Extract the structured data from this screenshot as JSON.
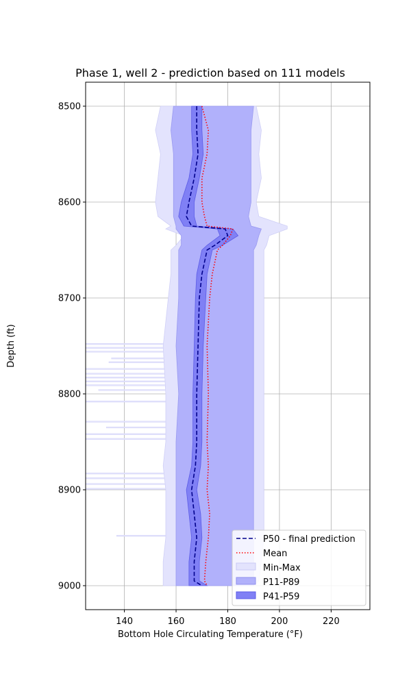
{
  "chart_data": {
    "type": "area",
    "title": "Phase 1, well 2 - prediction based on 111 models",
    "xlabel": "Bottom Hole Circulating Temperature (°F)",
    "ylabel": "Depth (ft)",
    "xlim": [
      125,
      235
    ],
    "ylim": [
      9025,
      8475
    ],
    "y_inverted": true,
    "grid": true,
    "legend_position": "lower right",
    "xticks": [
      140,
      160,
      180,
      200,
      220
    ],
    "xtick_labels": [
      "140",
      "160",
      "180",
      "200",
      "220"
    ],
    "yticks": [
      8500,
      8600,
      8700,
      8800,
      8900,
      9000
    ],
    "ytick_labels": [
      "8500",
      "8600",
      "8700",
      "8800",
      "8900",
      "9000"
    ],
    "colors": {
      "p50": "#00008b",
      "mean": "#ff0000",
      "minmax": "#e3e3fd",
      "p11_p89": "#b1b1fb",
      "p41_p59": "#8080f5"
    },
    "depth": [
      8500,
      8525,
      8550,
      8575,
      8600,
      8615,
      8625,
      8628,
      8635,
      8645,
      8650,
      8675,
      8700,
      8750,
      8800,
      8850,
      8875,
      8900,
      8925,
      8950,
      8975,
      8995,
      9000
    ],
    "series": [
      {
        "name": "P50 - final prediction",
        "key": "p50",
        "style": "dashed",
        "values": [
          168,
          168,
          168.5,
          167,
          165,
          164,
          166,
          179,
          180,
          175,
          172,
          170,
          169,
          168.5,
          168,
          168,
          167.5,
          166,
          167,
          168,
          167,
          167,
          170
        ]
      },
      {
        "name": "Mean",
        "key": "mean",
        "style": "dotted",
        "values": [
          170,
          172.5,
          172,
          170,
          170,
          171,
          172,
          182,
          181,
          178,
          176,
          174,
          173,
          172,
          172.5,
          172,
          172.5,
          172,
          173,
          172.5,
          171.5,
          171,
          172
        ]
      }
    ],
    "bands": [
      {
        "name": "Min-Max",
        "key": "minmax",
        "lower": [
          154,
          152,
          154,
          153,
          152,
          153,
          158,
          156,
          163,
          160,
          158,
          158,
          157,
          155,
          156,
          156,
          155,
          156,
          156,
          156,
          155,
          155,
          155
        ],
        "upper": [
          191,
          193,
          192,
          193,
          191,
          192,
          203,
          203,
          196,
          195,
          194,
          194,
          194,
          194,
          194,
          194,
          194,
          194,
          194,
          194,
          193,
          192,
          190
        ]
      },
      {
        "name": "P11-P89",
        "key": "p11_p89",
        "lower": [
          159,
          158,
          159,
          159,
          159,
          159,
          160,
          160,
          162,
          162,
          161,
          161,
          161,
          160,
          161,
          160,
          160,
          160,
          160,
          160,
          160,
          160,
          160
        ],
        "upper": [
          190,
          189,
          189,
          189,
          189,
          188,
          189,
          193,
          192,
          191,
          190,
          190,
          190,
          190,
          190,
          190,
          190,
          190,
          190,
          190,
          190,
          190,
          190
        ]
      },
      {
        "name": "P41-P59",
        "key": "p41_p59",
        "lower": [
          166,
          166,
          166.5,
          165,
          162,
          161,
          163,
          176,
          177,
          172,
          170,
          168,
          167.5,
          167,
          166.5,
          166.5,
          166,
          164,
          165,
          166,
          165,
          165,
          165
        ],
        "upper": [
          170,
          170,
          170.5,
          169,
          167,
          167,
          168,
          182,
          184,
          178,
          174,
          172,
          171.5,
          170.5,
          170,
          170,
          169.5,
          168,
          169.5,
          170,
          169,
          169,
          172
        ]
      }
    ],
    "minmax_spikes": {
      "depths": [
        8748,
        8752,
        8756,
        8763,
        8767,
        8774,
        8779,
        8783,
        8787,
        8791,
        8796,
        8808,
        8829,
        8835,
        8842,
        8847,
        8883,
        8888,
        8894,
        8899,
        8948
      ],
      "min_values": [
        125,
        125,
        125,
        135,
        134,
        125,
        125,
        125,
        125,
        125,
        130,
        125,
        125,
        133,
        125,
        125,
        125,
        125,
        125,
        125,
        137
      ]
    }
  }
}
